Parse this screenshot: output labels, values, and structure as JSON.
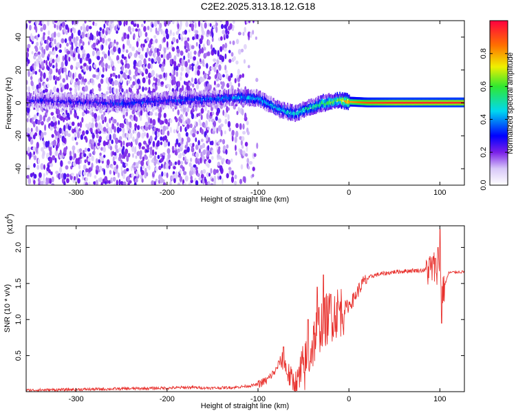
{
  "title": "C2E2.2025.313.18.12.G18",
  "chart_data": [
    {
      "type": "heatmap",
      "title": "C2E2.2025.313.18.12.G18",
      "xlabel": "Height of straight line (km)",
      "ylabel": "Frequency (Hz)",
      "xlim": [
        -355,
        127
      ],
      "ylim": [
        -50,
        50
      ],
      "xticks": [
        -300,
        -200,
        -100,
        0,
        100
      ],
      "xtick_labels": [
        "-300",
        "-200",
        "-100",
        "0",
        "100"
      ],
      "yticks": [
        -40,
        -20,
        0,
        20,
        40
      ],
      "ytick_labels": [
        "-40",
        "-20",
        "0",
        "20",
        "40"
      ],
      "colorbar": {
        "label": "Normalized spectral amplitude",
        "range": [
          0,
          1
        ],
        "ticks": [
          0.0,
          0.2,
          0.4,
          0.6,
          0.8
        ],
        "tick_labels": [
          "0.0",
          "0.2",
          "0.4",
          "0.6",
          "0.8"
        ]
      },
      "ridge": {
        "x": [
          -355,
          -300,
          -250,
          -200,
          -150,
          -120,
          -100,
          -90,
          -80,
          -70,
          -60,
          -50,
          -40,
          -30,
          -20,
          -10,
          0,
          20,
          50,
          100,
          127
        ],
        "freq": [
          2,
          1,
          0,
          2,
          3,
          4,
          3,
          0,
          -3,
          -5,
          -6,
          -4,
          -2,
          0,
          1,
          2,
          1,
          0.5,
          0.5,
          0.5,
          0.5
        ],
        "amplitude": [
          0.25,
          0.25,
          0.3,
          0.3,
          0.35,
          0.4,
          0.4,
          0.4,
          0.45,
          0.45,
          0.45,
          0.5,
          0.5,
          0.55,
          0.6,
          0.7,
          0.8,
          0.9,
          0.95,
          0.95,
          0.95
        ]
      },
      "noise_region": {
        "x": [
          -355,
          -100
        ],
        "freq": [
          -50,
          50
        ]
      }
    },
    {
      "type": "line",
      "xlabel": "Height of straight line (km)",
      "ylabel": "SNR (10 * v/v)",
      "exponent_label": "(x10",
      "exponent": "4",
      "exponent_close": ")",
      "xlim": [
        -355,
        127
      ],
      "ylim": [
        0,
        2.3
      ],
      "xticks": [
        -300,
        -200,
        -100,
        0,
        100
      ],
      "xtick_labels": [
        "-300",
        "-200",
        "-100",
        "0",
        "100"
      ],
      "yticks": [
        0.5,
        1.0,
        1.5,
        2.0
      ],
      "ytick_labels": [
        "0.5",
        "1.0",
        "1.5",
        "2.0"
      ],
      "color": "#e8302c",
      "series": [
        {
          "name": "SNR",
          "x": [
            -355,
            -300,
            -250,
            -200,
            -175,
            -150,
            -125,
            -110,
            -100,
            -90,
            -80,
            -75,
            -70,
            -65,
            -60,
            -55,
            -50,
            -45,
            -40,
            -35,
            -30,
            -25,
            -20,
            -15,
            -10,
            -5,
            0,
            5,
            10,
            15,
            20,
            25,
            30,
            40,
            50,
            60,
            70,
            80,
            90,
            95,
            100,
            103,
            110,
            120,
            127
          ],
          "y": [
            0.02,
            0.03,
            0.04,
            0.05,
            0.06,
            0.05,
            0.06,
            0.08,
            0.1,
            0.16,
            0.3,
            0.45,
            0.35,
            0.2,
            0.12,
            0.18,
            0.3,
            0.45,
            0.65,
            0.85,
            0.95,
            1.0,
            1.05,
            1.1,
            1.12,
            1.15,
            1.2,
            1.28,
            1.4,
            1.5,
            1.56,
            1.6,
            1.62,
            1.64,
            1.66,
            1.67,
            1.68,
            1.68,
            1.7,
            1.72,
            1.75,
            1.4,
            1.65,
            1.66,
            1.66
          ]
        }
      ],
      "spikes": {
        "x": [
          -72,
          -45,
          -35,
          -28,
          -20,
          -12,
          95,
          98,
          100,
          102
        ],
        "y": [
          0.62,
          1.0,
          1.45,
          1.62,
          1.35,
          1.25,
          1.85,
          2.0,
          2.25,
          0.95
        ]
      }
    }
  ]
}
